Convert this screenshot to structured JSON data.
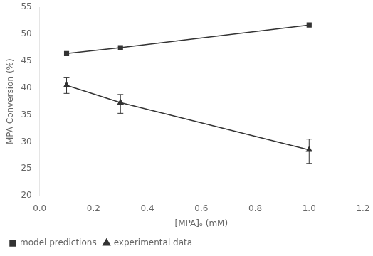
{
  "chart_data": {
    "type": "line",
    "xlabel": "[MPA]ₒ (mM)",
    "ylabel": "MPA Conversion (%)",
    "x": [
      0.1,
      0.3,
      1.0
    ],
    "series": [
      {
        "name": "model predictions",
        "color": "#333333",
        "marker": "square",
        "line_style": "solid",
        "values": [
          46.4,
          47.5,
          51.7
        ]
      },
      {
        "name": "experimental data",
        "color": "#333333",
        "marker": "triangle",
        "line_style": "solid",
        "values": [
          40.5,
          37.3,
          28.5
        ],
        "error_lower": [
          1.5,
          2.0,
          2.5
        ],
        "error_upper": [
          1.5,
          1.5,
          2.0
        ]
      }
    ],
    "xlim": [
      0,
      1.2
    ],
    "xticks": [
      {
        "value": 0,
        "label": "0.0"
      },
      0.2,
      0.4,
      0.6,
      0.8,
      {
        "value": 1,
        "label": "1.0"
      },
      1.2
    ],
    "ylim": [
      20,
      55
    ],
    "yticks": [
      20,
      25,
      30,
      35,
      40,
      45,
      50,
      55
    ],
    "grid": false,
    "legend": "lower left"
  }
}
